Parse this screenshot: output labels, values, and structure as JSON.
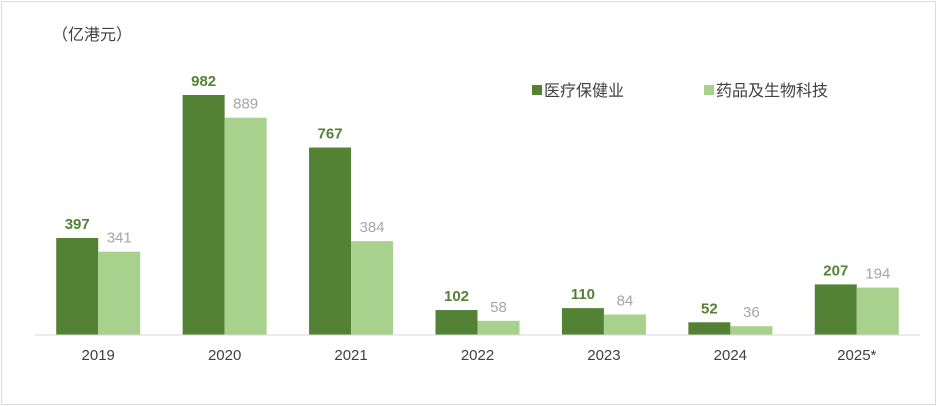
{
  "chart_data": {
    "type": "bar",
    "unit_label": "（亿港元）",
    "categories": [
      "2019",
      "2020",
      "2021",
      "2022",
      "2023",
      "2024",
      "2025*"
    ],
    "series": [
      {
        "name": "医疗保健业",
        "values": [
          397,
          982,
          767,
          102,
          110,
          52,
          207
        ],
        "color": "#548235",
        "label_color": "#548235"
      },
      {
        "name": "药品及生物科技",
        "values": [
          341,
          889,
          384,
          58,
          84,
          36,
          194
        ],
        "color": "#a9d18e",
        "label_color": "#a6a6a6"
      }
    ],
    "ylim": [
      0,
      1000
    ],
    "grid": false,
    "legend_position": "top-right"
  }
}
